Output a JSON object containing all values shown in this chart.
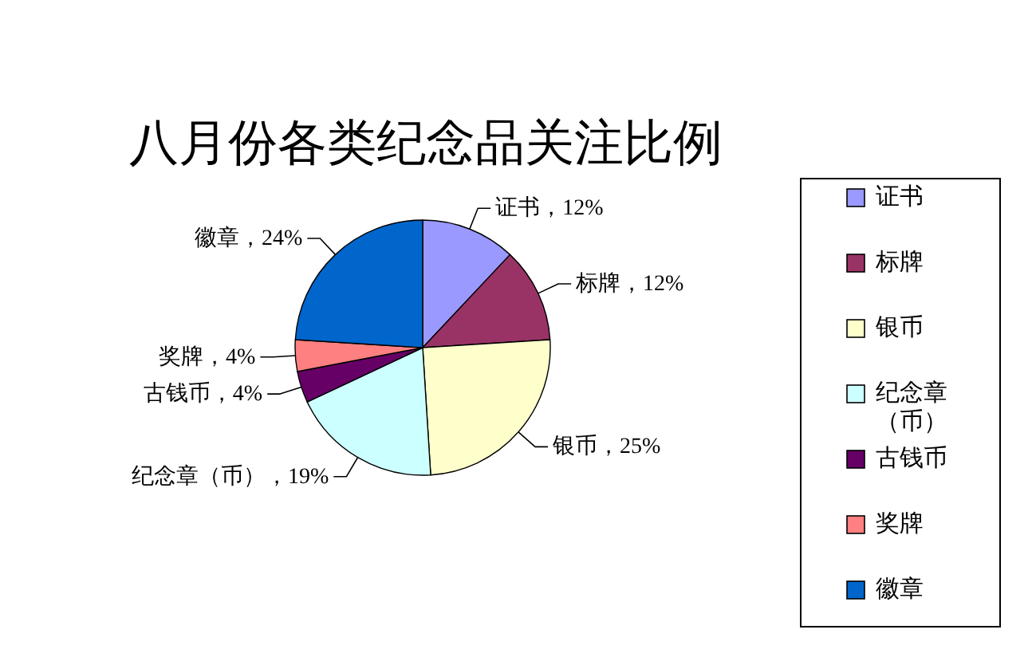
{
  "chart_data": {
    "type": "pie",
    "title": "八月份各类纪念品关注比例",
    "categories": [
      "证书",
      "标牌",
      "银币",
      "纪念章（币）",
      "古钱币",
      "奖牌",
      "徽章"
    ],
    "values": [
      12,
      12,
      25,
      19,
      4,
      4,
      24
    ],
    "colors": [
      "#9999ff",
      "#993366",
      "#ffffcc",
      "#ccffff",
      "#660066",
      "#ff8080",
      "#0066cc"
    ],
    "value_labels": [
      "证书，12%",
      "标牌，12%",
      "银币，25%",
      "纪念章（币），19%",
      "古钱币，4%",
      "奖牌，4%",
      "徽章，24%"
    ],
    "legend": "right"
  }
}
